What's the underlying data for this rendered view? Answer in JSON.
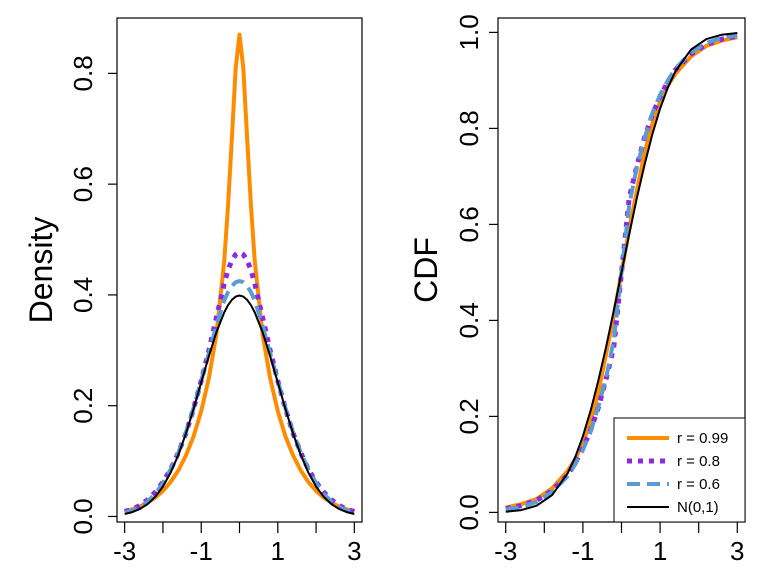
{
  "chart_data": [
    {
      "type": "line",
      "title": "",
      "xlabel": "",
      "ylabel": "Density",
      "xlim": [
        -3.2,
        3.2
      ],
      "ylim": [
        -0.01,
        0.9
      ],
      "x_ticks": [
        -3,
        -1,
        1,
        3
      ],
      "x_minor_ticks": [
        -2,
        0,
        2
      ],
      "x_tick_labels": [
        "-3",
        "-1",
        "1",
        "3"
      ],
      "y_ticks": [
        0.0,
        0.2,
        0.4,
        0.6,
        0.8
      ],
      "y_tick_labels": [
        "0.0",
        "0.2",
        "0.4",
        "0.6",
        "0.8"
      ],
      "grid": false,
      "x": [
        -3.0,
        -2.8,
        -2.6,
        -2.4,
        -2.2,
        -2.0,
        -1.8,
        -1.6,
        -1.4,
        -1.2,
        -1.0,
        -0.8,
        -0.6,
        -0.4,
        -0.3,
        -0.2,
        -0.1,
        0.0,
        0.1,
        0.2,
        0.3,
        0.4,
        0.6,
        0.8,
        1.0,
        1.2,
        1.4,
        1.6,
        1.8,
        2.0,
        2.2,
        2.4,
        2.6,
        2.8,
        3.0
      ],
      "series": [
        {
          "name": "r = 0.99",
          "color": "#ff8c00",
          "dash": "solid",
          "width": 4,
          "values": [
            0.009,
            0.013,
            0.018,
            0.025,
            0.034,
            0.046,
            0.062,
            0.083,
            0.11,
            0.145,
            0.19,
            0.25,
            0.33,
            0.46,
            0.56,
            0.68,
            0.81,
            0.87,
            0.81,
            0.68,
            0.56,
            0.46,
            0.33,
            0.25,
            0.19,
            0.145,
            0.11,
            0.083,
            0.062,
            0.046,
            0.034,
            0.025,
            0.018,
            0.013,
            0.009
          ]
        },
        {
          "name": "r = 0.8",
          "color": "#8a2be2",
          "dash": "dotted",
          "width": 5,
          "values": [
            0.009,
            0.013,
            0.02,
            0.03,
            0.044,
            0.062,
            0.085,
            0.115,
            0.15,
            0.195,
            0.245,
            0.3,
            0.36,
            0.42,
            0.445,
            0.462,
            0.473,
            0.477,
            0.473,
            0.462,
            0.445,
            0.42,
            0.36,
            0.3,
            0.245,
            0.195,
            0.15,
            0.115,
            0.085,
            0.062,
            0.044,
            0.03,
            0.02,
            0.013,
            0.009
          ]
        },
        {
          "name": "r = 0.6",
          "color": "#5b9bd5",
          "dash": "dashed",
          "width": 4,
          "values": [
            0.007,
            0.011,
            0.017,
            0.027,
            0.041,
            0.06,
            0.085,
            0.115,
            0.152,
            0.196,
            0.245,
            0.295,
            0.345,
            0.39,
            0.405,
            0.416,
            0.423,
            0.425,
            0.423,
            0.416,
            0.405,
            0.39,
            0.345,
            0.295,
            0.245,
            0.196,
            0.152,
            0.115,
            0.085,
            0.06,
            0.041,
            0.027,
            0.017,
            0.011,
            0.007
          ]
        },
        {
          "name": "N(0,1)",
          "color": "#000000",
          "dash": "solid",
          "width": 2,
          "values": [
            0.0044,
            0.0079,
            0.0136,
            0.0224,
            0.0355,
            0.054,
            0.079,
            0.1109,
            0.1497,
            0.1942,
            0.242,
            0.2897,
            0.3332,
            0.3683,
            0.3814,
            0.391,
            0.397,
            0.3989,
            0.397,
            0.391,
            0.3814,
            0.3683,
            0.3332,
            0.2897,
            0.242,
            0.1942,
            0.1497,
            0.1109,
            0.079,
            0.054,
            0.0355,
            0.0224,
            0.0136,
            0.0079,
            0.0044
          ]
        }
      ]
    },
    {
      "type": "line",
      "title": "",
      "xlabel": "",
      "ylabel": "CDF",
      "xlim": [
        -3.2,
        3.2
      ],
      "ylim": [
        -0.02,
        1.03
      ],
      "x_ticks": [
        -3,
        -1,
        1,
        3
      ],
      "x_minor_ticks": [
        -2,
        0,
        2
      ],
      "x_tick_labels": [
        "-3",
        "-1",
        "1",
        "3"
      ],
      "y_ticks": [
        0.0,
        0.2,
        0.4,
        0.6,
        0.8,
        1.0
      ],
      "y_tick_labels": [
        "0.0",
        "0.2",
        "0.4",
        "0.6",
        "0.8",
        "1.0"
      ],
      "grid": false,
      "legend_position": "bottom-right",
      "x": [
        -3.0,
        -2.6,
        -2.2,
        -1.8,
        -1.4,
        -1.2,
        -1.0,
        -0.8,
        -0.6,
        -0.4,
        -0.2,
        0.0,
        0.2,
        0.4,
        0.6,
        0.8,
        1.0,
        1.2,
        1.4,
        1.8,
        2.2,
        2.6,
        3.0
      ],
      "series": [
        {
          "name": "r = 0.99",
          "color": "#ff8c00",
          "dash": "solid",
          "width": 4,
          "values": [
            0.01,
            0.017,
            0.028,
            0.05,
            0.086,
            0.111,
            0.145,
            0.19,
            0.25,
            0.33,
            0.41,
            0.5,
            0.59,
            0.67,
            0.75,
            0.81,
            0.855,
            0.889,
            0.914,
            0.95,
            0.972,
            0.983,
            0.99
          ]
        },
        {
          "name": "r = 0.8",
          "color": "#8a2be2",
          "dash": "dotted",
          "width": 5,
          "values": [
            0.008,
            0.014,
            0.025,
            0.045,
            0.078,
            0.103,
            0.134,
            0.171,
            0.218,
            0.278,
            0.345,
            0.5,
            0.655,
            0.722,
            0.782,
            0.829,
            0.866,
            0.897,
            0.922,
            0.955,
            0.975,
            0.986,
            0.992
          ]
        },
        {
          "name": "r = 0.6",
          "color": "#5b9bd5",
          "dash": "dashed",
          "width": 4,
          "values": [
            0.006,
            0.011,
            0.022,
            0.042,
            0.075,
            0.1,
            0.13,
            0.168,
            0.22,
            0.28,
            0.36,
            0.5,
            0.64,
            0.72,
            0.78,
            0.832,
            0.87,
            0.9,
            0.925,
            0.958,
            0.978,
            0.989,
            0.994
          ]
        },
        {
          "name": "N(0,1)",
          "color": "#000000",
          "dash": "solid",
          "width": 2,
          "values": [
            0.0013,
            0.0047,
            0.0139,
            0.0359,
            0.0808,
            0.1151,
            0.1587,
            0.2119,
            0.2743,
            0.3446,
            0.4207,
            0.5,
            0.5793,
            0.6554,
            0.7257,
            0.7881,
            0.8413,
            0.8849,
            0.9192,
            0.9641,
            0.9861,
            0.9953,
            0.9987
          ]
        }
      ]
    }
  ]
}
